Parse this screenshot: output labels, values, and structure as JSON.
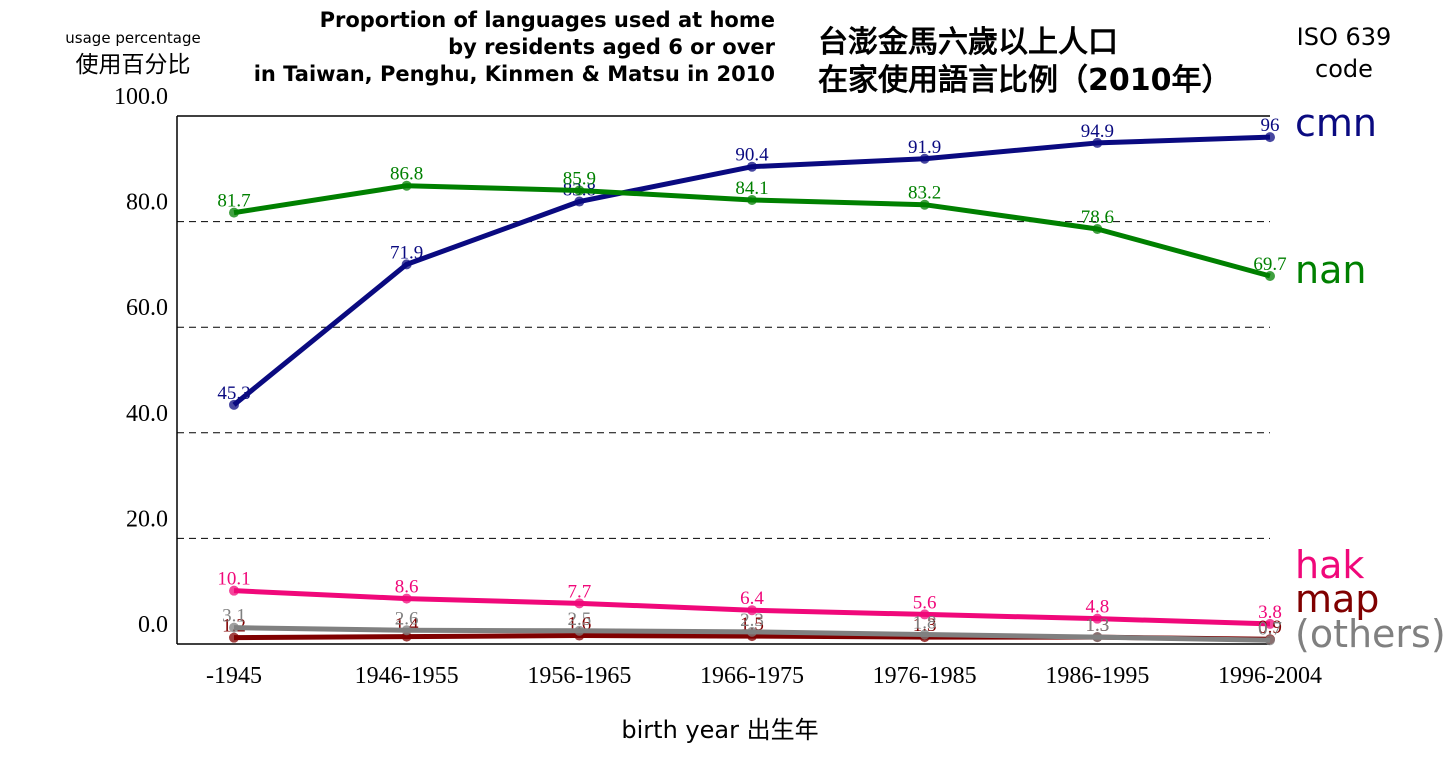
{
  "chart_data": {
    "type": "line",
    "title": [
      "Proportion of languages used at home",
      "by residents aged 6 or over",
      "in Taiwan, Penghu, Kinmen & Matsu in 2010"
    ],
    "title_zh": [
      "台澎金馬六歲以上人口",
      "在家使用語言比例（2010年）"
    ],
    "legend_title": [
      "ISO 639",
      "code"
    ],
    "ylabel": [
      "usage percentage",
      "使用百分比"
    ],
    "xlabel": "birth year 出生年",
    "categories": [
      "-1945",
      "1946-1955",
      "1956-1965",
      "1966-1975",
      "1976-1985",
      "1986-1995",
      "1996-2004"
    ],
    "series": [
      {
        "name": "cmn",
        "color": "#0a0a80",
        "values": [
          45.3,
          71.9,
          83.8,
          90.4,
          91.9,
          94.9,
          96
        ]
      },
      {
        "name": "nan",
        "color": "#008000",
        "values": [
          81.7,
          86.8,
          85.9,
          84.1,
          83.2,
          78.6,
          69.7
        ]
      },
      {
        "name": "hak",
        "color": "#f0087a",
        "values": [
          10.1,
          8.6,
          7.7,
          6.4,
          5.6,
          4.8,
          3.8
        ]
      },
      {
        "name": "map",
        "color": "#800000",
        "values": [
          1.2,
          1.4,
          1.6,
          1.5,
          1.3,
          1.3,
          0.9
        ]
      },
      {
        "name": "(others)",
        "color": "#808080",
        "values": [
          3.1,
          2.6,
          2.5,
          2.3,
          1.8,
          1.3,
          0.7
        ]
      }
    ],
    "ylim": [
      0,
      100
    ],
    "yticks": [
      {
        "value": 0,
        "label": "0.0"
      },
      {
        "value": 20,
        "label": "20.0"
      },
      {
        "value": 40,
        "label": "40.0"
      },
      {
        "value": 60,
        "label": "60.0"
      },
      {
        "value": 80,
        "label": "80.0"
      },
      {
        "value": 100,
        "label": "100.0"
      }
    ],
    "grid": true
  }
}
